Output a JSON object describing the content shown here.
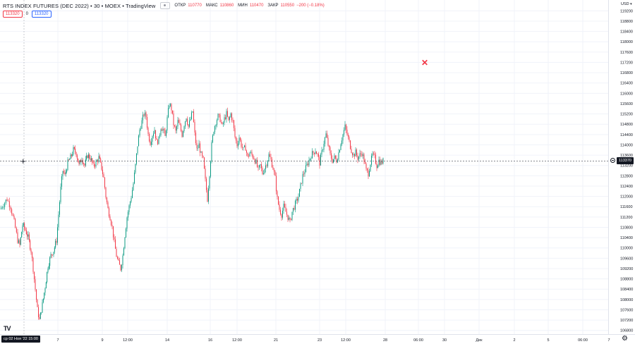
{
  "header": {
    "title": "RTS INDEX FUTURES (DEC 2022) • 30 • MOEX • TradingView",
    "open_label": "ОТКР",
    "open_value": "110770",
    "high_label": "МАКС",
    "high_value": "110860",
    "low_label": "МИН",
    "low_value": "110470",
    "close_label": "ЗАКР",
    "close_value": "110550",
    "change_value": "−200 (−0.18%)"
  },
  "bid_ask": {
    "bid": "113320",
    "spread": "0",
    "ask": "113320"
  },
  "currency": "USD",
  "last_price_tag": "113370",
  "crosshair_time": "ср 02 Ноя '22   15:00",
  "colors": {
    "up": "#089981",
    "down": "#f23645",
    "text": "#131722",
    "grid": "#f0f3fa"
  },
  "icons": [
    "tradingview-logo-icon",
    "settings-gear-icon",
    "eye-icon",
    "cross-mark-icon",
    "crosshair-plus-icon",
    "price-line-circle-icon"
  ],
  "chart_data": {
    "type": "candlestick",
    "title": "RTS INDEX FUTURES (DEC 2022)",
    "y_axis": {
      "range": [
        106600,
        119400
      ],
      "ticks": [
        "119200",
        "118800",
        "118400",
        "118000",
        "117600",
        "117200",
        "116800",
        "116400",
        "116000",
        "115600",
        "115200",
        "114800",
        "114400",
        "114000",
        "113600",
        "113200",
        "112800",
        "112400",
        "112000",
        "111600",
        "111200",
        "110800",
        "110400",
        "110000",
        "109600",
        "109200",
        "108800",
        "108400",
        "108000",
        "107600",
        "107200",
        "106800"
      ]
    },
    "x_axis": {
      "ticks": [
        "7",
        "9",
        "12:00",
        "14",
        "16",
        "12:00",
        "21",
        "23",
        "12:00",
        "28",
        "06:00",
        "30",
        "Дек",
        "2",
        "5",
        "06:00",
        "7"
      ]
    },
    "grid": true,
    "series_points": [
      [
        0,
        111500
      ],
      [
        5,
        111700
      ],
      [
        10,
        111900
      ],
      [
        15,
        111600
      ],
      [
        20,
        111000
      ],
      [
        25,
        110300
      ],
      [
        28,
        110100
      ],
      [
        32,
        110900
      ],
      [
        36,
        110700
      ],
      [
        40,
        110400
      ],
      [
        44,
        109900
      ],
      [
        47,
        109200
      ],
      [
        50,
        108400
      ],
      [
        53,
        107600
      ],
      [
        56,
        107200
      ],
      [
        60,
        107800
      ],
      [
        64,
        108500
      ],
      [
        68,
        109300
      ],
      [
        72,
        109700
      ],
      [
        76,
        109900
      ],
      [
        80,
        110300
      ],
      [
        83,
        111300
      ],
      [
        86,
        112300
      ],
      [
        89,
        113000
      ],
      [
        92,
        112800
      ],
      [
        96,
        113300
      ],
      [
        100,
        113500
      ],
      [
        104,
        113800
      ],
      [
        108,
        113700
      ],
      [
        112,
        113200
      ],
      [
        116,
        113500
      ],
      [
        120,
        113200
      ],
      [
        124,
        113600
      ],
      [
        128,
        113500
      ],
      [
        132,
        113200
      ],
      [
        136,
        113300
      ],
      [
        140,
        113500
      ],
      [
        144,
        113100
      ],
      [
        147,
        112700
      ],
      [
        150,
        112000
      ],
      [
        153,
        111500
      ],
      [
        156,
        111200
      ],
      [
        159,
        110800
      ],
      [
        162,
        110200
      ],
      [
        165,
        109700
      ],
      [
        168,
        109400
      ],
      [
        171,
        109200
      ],
      [
        174,
        109700
      ],
      [
        177,
        110500
      ],
      [
        180,
        111200
      ],
      [
        183,
        111600
      ],
      [
        186,
        112000
      ],
      [
        189,
        112500
      ],
      [
        192,
        113200
      ],
      [
        195,
        114000
      ],
      [
        198,
        114600
      ],
      [
        201,
        114900
      ],
      [
        204,
        115200
      ],
      [
        207,
        115100
      ],
      [
        210,
        114400
      ],
      [
        213,
        114100
      ],
      [
        216,
        114400
      ],
      [
        219,
        114600
      ],
      [
        222,
        114100
      ],
      [
        225,
        114200
      ],
      [
        228,
        114700
      ],
      [
        231,
        114600
      ],
      [
        234,
        114300
      ],
      [
        237,
        115000
      ],
      [
        240,
        115600
      ],
      [
        243,
        115400
      ],
      [
        246,
        114800
      ],
      [
        249,
        114500
      ],
      [
        252,
        114900
      ],
      [
        255,
        114700
      ],
      [
        258,
        114400
      ],
      [
        261,
        114800
      ],
      [
        264,
        115100
      ],
      [
        267,
        114700
      ],
      [
        270,
        115000
      ],
      [
        273,
        115300
      ],
      [
        276,
        114400
      ],
      [
        279,
        113800
      ],
      [
        282,
        114000
      ],
      [
        285,
        113600
      ],
      [
        288,
        113400
      ],
      [
        291,
        112600
      ],
      [
        294,
        111900
      ],
      [
        297,
        112900
      ],
      [
        300,
        114000
      ],
      [
        303,
        114600
      ],
      [
        306,
        114900
      ],
      [
        309,
        115100
      ],
      [
        312,
        115000
      ],
      [
        315,
        114700
      ],
      [
        318,
        115000
      ],
      [
        321,
        115200
      ],
      [
        324,
        114900
      ],
      [
        327,
        115200
      ],
      [
        330,
        114900
      ],
      [
        333,
        114300
      ],
      [
        336,
        114000
      ],
      [
        339,
        114300
      ],
      [
        342,
        114000
      ],
      [
        345,
        113800
      ],
      [
        348,
        113900
      ],
      [
        351,
        113500
      ],
      [
        354,
        113700
      ],
      [
        357,
        113600
      ],
      [
        360,
        113500
      ],
      [
        363,
        113300
      ],
      [
        366,
        113000
      ],
      [
        369,
        113200
      ],
      [
        372,
        112900
      ],
      [
        375,
        113100
      ],
      [
        378,
        113300
      ],
      [
        381,
        113600
      ],
      [
        384,
        113400
      ],
      [
        387,
        113100
      ],
      [
        390,
        112700
      ],
      [
        393,
        111900
      ],
      [
        396,
        111500
      ],
      [
        399,
        111300
      ],
      [
        402,
        111600
      ],
      [
        405,
        111400
      ],
      [
        408,
        111200
      ],
      [
        411,
        111000
      ],
      [
        414,
        111400
      ],
      [
        417,
        111600
      ],
      [
        420,
        111800
      ],
      [
        423,
        112000
      ],
      [
        426,
        112400
      ],
      [
        429,
        112800
      ],
      [
        432,
        113000
      ],
      [
        435,
        113200
      ],
      [
        438,
        113400
      ],
      [
        441,
        113600
      ],
      [
        444,
        113700
      ],
      [
        447,
        113800
      ],
      [
        450,
        113600
      ],
      [
        453,
        113300
      ],
      [
        456,
        113700
      ],
      [
        459,
        114100
      ],
      [
        462,
        114400
      ],
      [
        465,
        114000
      ],
      [
        468,
        113600
      ],
      [
        471,
        113400
      ],
      [
        474,
        113500
      ],
      [
        477,
        113400
      ],
      [
        480,
        113700
      ],
      [
        483,
        114100
      ],
      [
        486,
        114400
      ],
      [
        489,
        114700
      ],
      [
        492,
        114400
      ],
      [
        495,
        114100
      ],
      [
        498,
        113800
      ],
      [
        501,
        113600
      ],
      [
        504,
        113700
      ],
      [
        507,
        113500
      ],
      [
        510,
        113600
      ],
      [
        513,
        113700
      ],
      [
        516,
        113400
      ],
      [
        519,
        113000
      ],
      [
        522,
        112900
      ],
      [
        525,
        113300
      ],
      [
        528,
        113600
      ],
      [
        531,
        113500
      ],
      [
        534,
        113200
      ],
      [
        537,
        113400
      ],
      [
        540,
        113300
      ],
      [
        543,
        113370
      ]
    ]
  }
}
